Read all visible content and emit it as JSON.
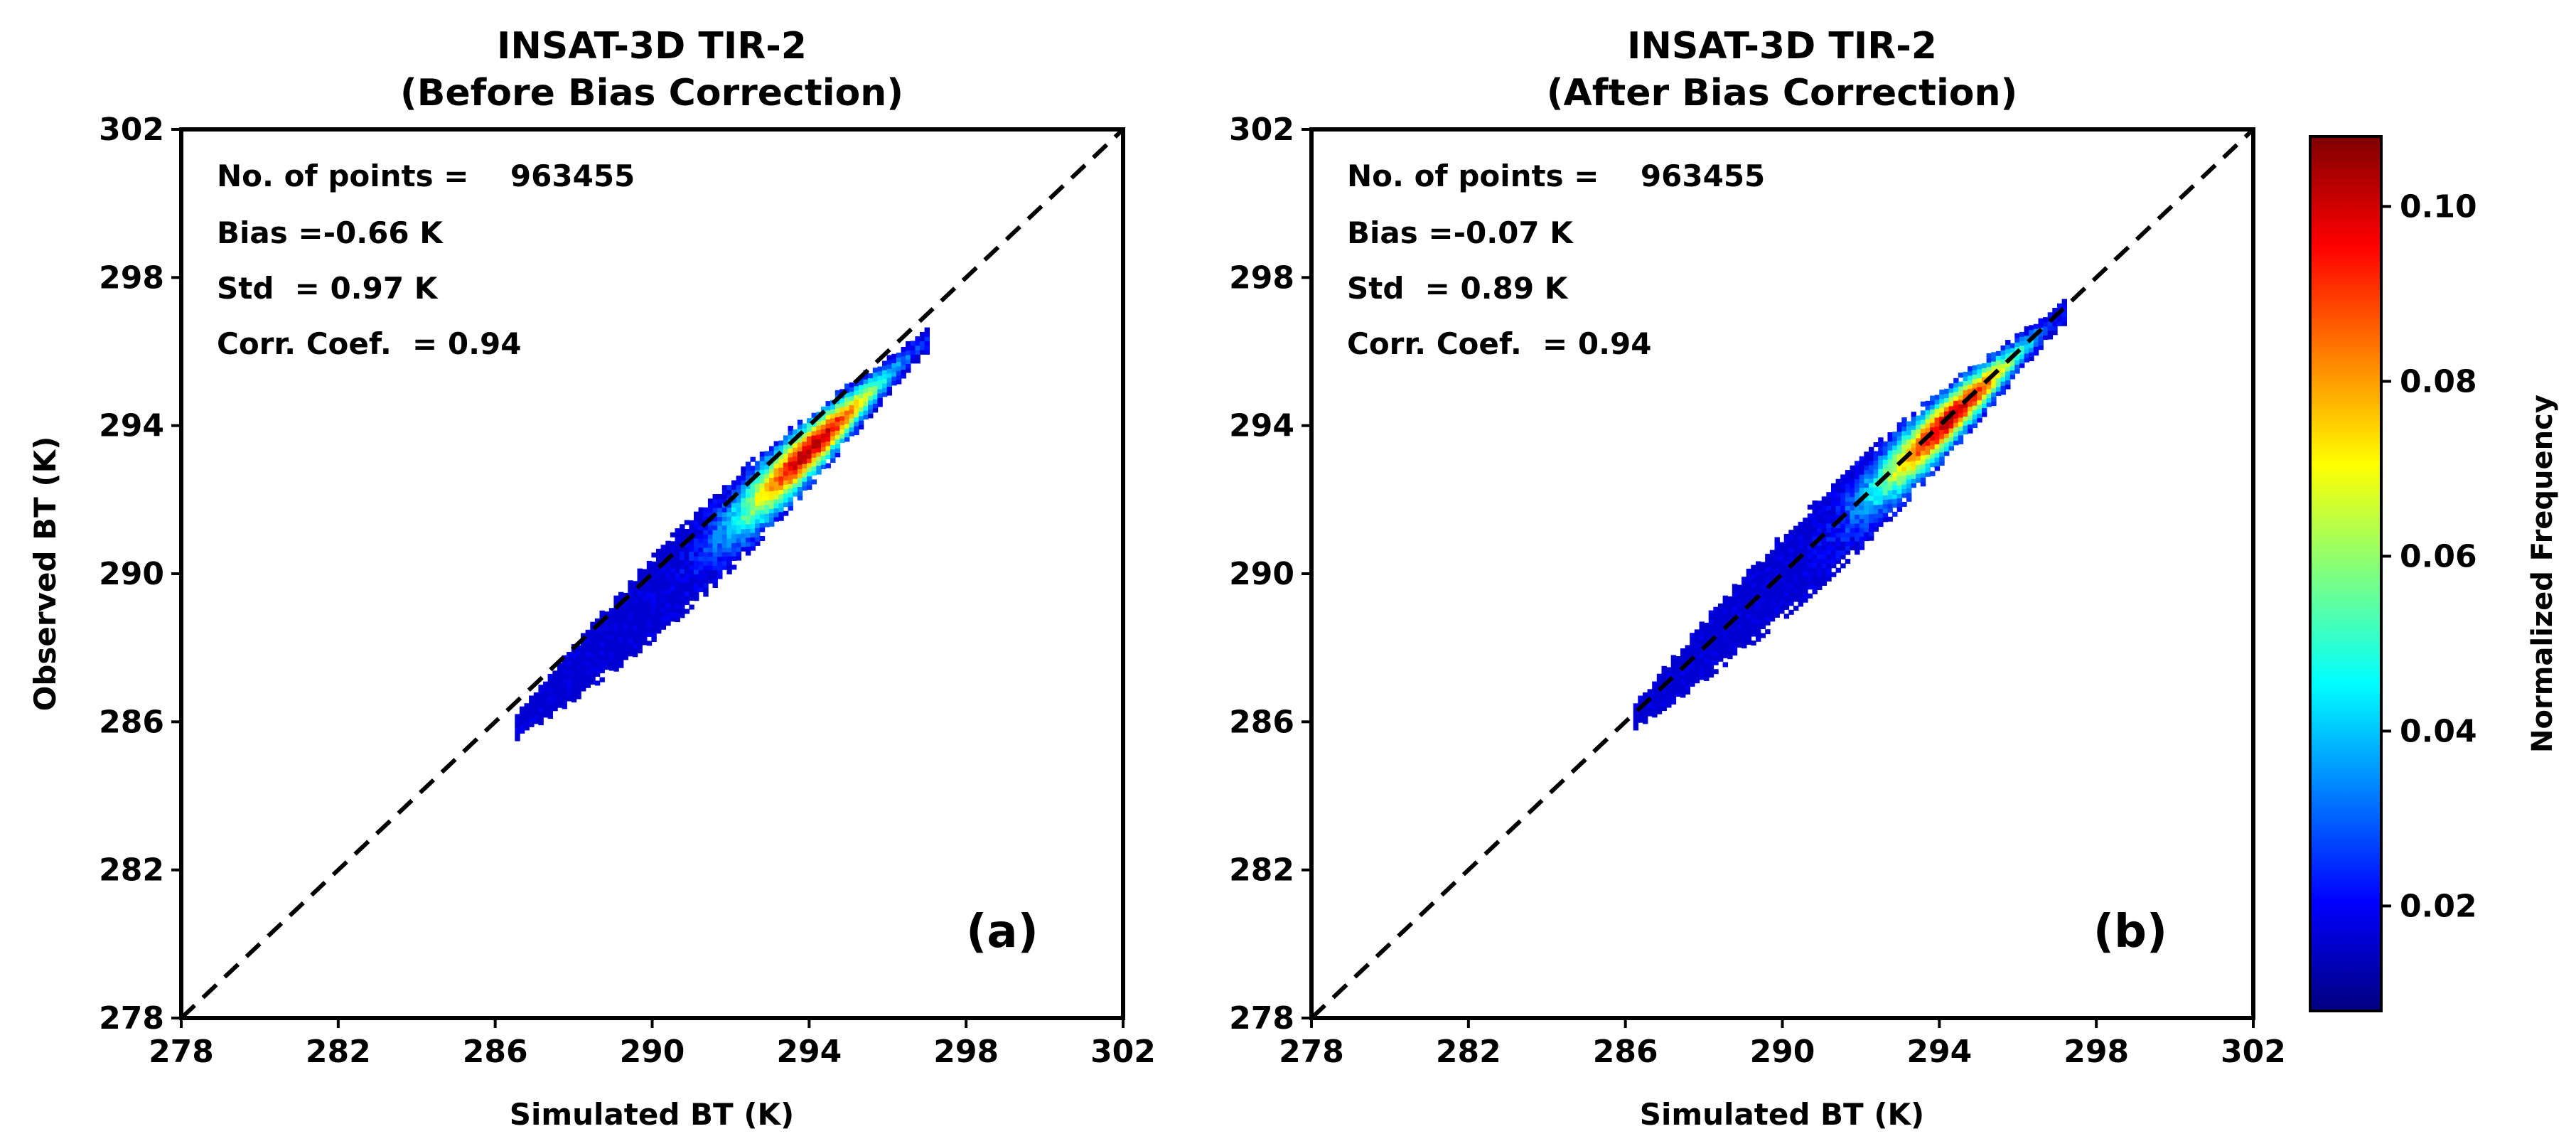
{
  "chart_data": [
    {
      "type": "heatmap",
      "panel": "a",
      "title_line1": "INSAT-3D TIR-2",
      "title_line2": "(Before Bias Correction)",
      "xlabel": "Simulated BT (K)",
      "ylabel": "Observed BT (K)",
      "xlim": [
        278,
        302
      ],
      "ylim": [
        278,
        302
      ],
      "xticks": [
        278,
        282,
        286,
        290,
        294,
        298,
        302
      ],
      "yticks": [
        278,
        282,
        286,
        290,
        294,
        298,
        302
      ],
      "reference_line": "1:1 dashed",
      "stats": {
        "points": "No. of points =    963455",
        "bias": "Bias =-0.66 K",
        "std": "Std  = 0.97 K",
        "corr": "Corr. Coef.  = 0.94"
      },
      "panel_label": "(a)",
      "distribution": {
        "x_range": [
          286.5,
          297.0
        ],
        "slope": 1.0,
        "intercept": -0.66,
        "peak_x": 294.0,
        "peak_y": 293.3
      }
    },
    {
      "type": "heatmap",
      "panel": "b",
      "title_line1": "INSAT-3D TIR-2",
      "title_line2": "(After Bias Correction)",
      "xlabel": "Simulated BT (K)",
      "ylabel": "",
      "xlim": [
        278,
        302
      ],
      "ylim": [
        278,
        302
      ],
      "xticks": [
        278,
        282,
        286,
        290,
        294,
        298,
        302
      ],
      "yticks": [
        278,
        282,
        286,
        290,
        294,
        298,
        302
      ],
      "reference_line": "1:1 dashed",
      "stats": {
        "points": "No. of points =    963455",
        "bias": "Bias =-0.07 K",
        "std": "Std  = 0.89 K",
        "corr": "Corr. Coef.  = 0.94"
      },
      "panel_label": "(b)",
      "distribution": {
        "x_range": [
          286.2,
          297.2
        ],
        "slope": 1.0,
        "intercept": -0.07,
        "peak_x": 294.2,
        "peak_y": 294.1
      }
    }
  ],
  "colorbar": {
    "label": "Normalized Frequency",
    "range": [
      0.008,
      0.108
    ],
    "ticks": [
      {
        "value": 0.02,
        "label": "0.02"
      },
      {
        "value": 0.04,
        "label": "0.04"
      },
      {
        "value": 0.06,
        "label": "0.06"
      },
      {
        "value": 0.08,
        "label": "0.08"
      },
      {
        "value": 0.1,
        "label": "0.10"
      }
    ],
    "colormap": [
      "#00007f",
      "#0000ff",
      "#007fff",
      "#00ffff",
      "#7fff7f",
      "#ffff00",
      "#ff7f00",
      "#ff0000",
      "#7f0000"
    ]
  }
}
